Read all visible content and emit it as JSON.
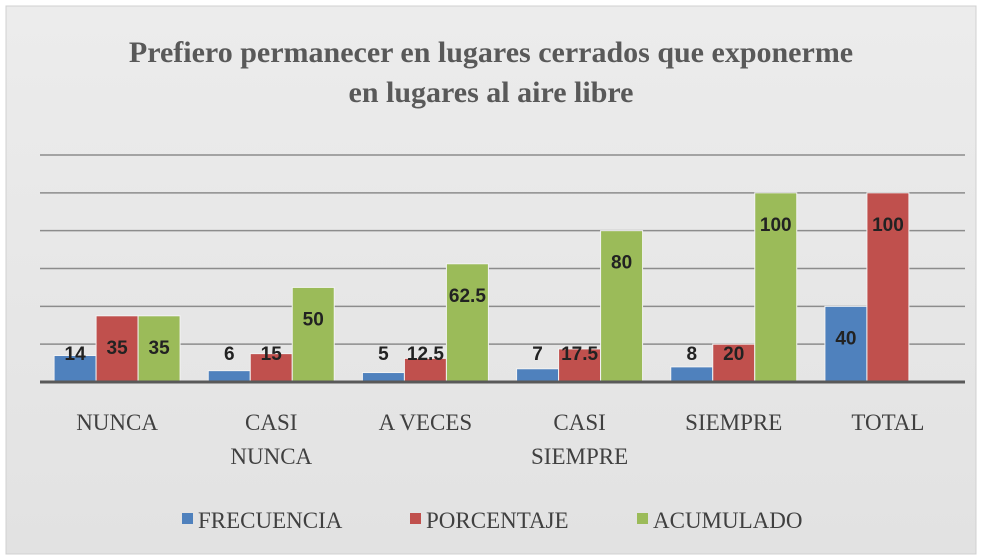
{
  "chart_data": {
    "type": "bar",
    "title": "Prefiero permanecer en lugares cerrados que exponerme en lugares al aire libre",
    "categories": [
      "NUNCA",
      "CASI NUNCA",
      "A VECES",
      "CASI SIEMPRE",
      "SIEMPRE",
      "TOTAL"
    ],
    "series": [
      {
        "name": "FRECUENCIA",
        "color": "#4f81bd",
        "values": [
          14,
          6,
          5,
          7,
          8,
          40
        ]
      },
      {
        "name": "PORCENTAJE",
        "color": "#c0504d",
        "values": [
          35,
          15,
          12.5,
          17.5,
          20,
          100
        ]
      },
      {
        "name": "ACUMULADO",
        "color": "#9bbb59",
        "values": [
          35,
          50,
          62.5,
          80,
          100,
          null
        ]
      }
    ],
    "ylim": [
      0,
      120
    ],
    "yticks": [
      0,
      20,
      40,
      60,
      80,
      100,
      120
    ],
    "grid": true,
    "legend": "bottom"
  }
}
